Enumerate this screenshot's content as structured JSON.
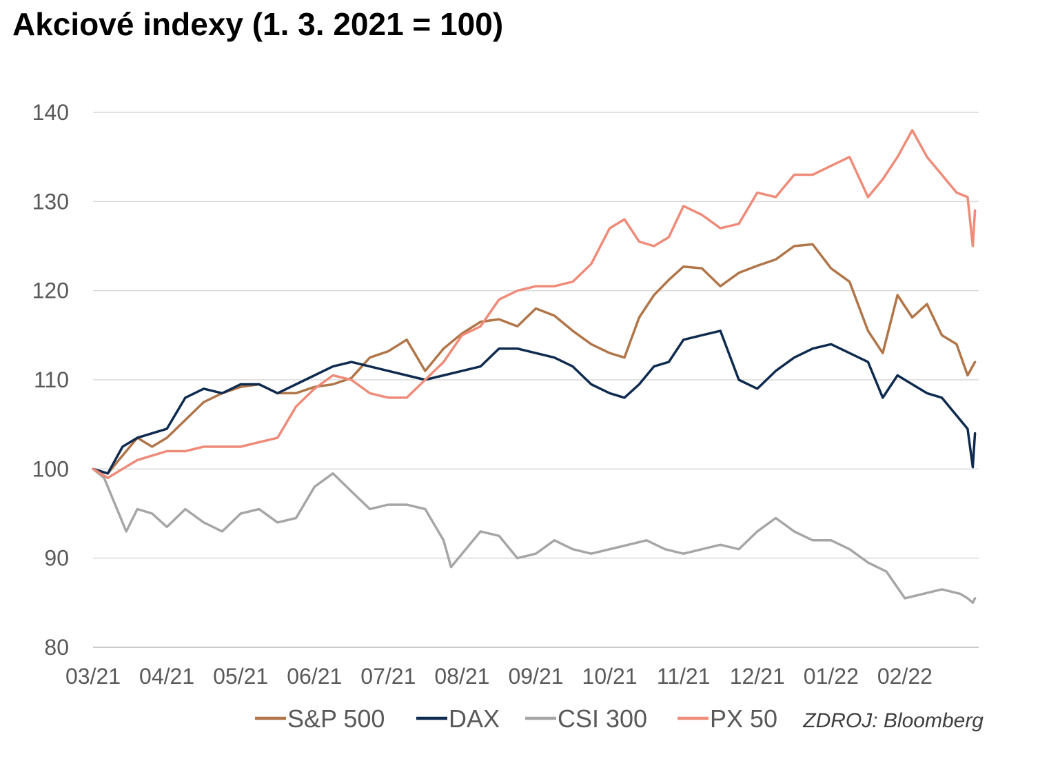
{
  "chart_data": {
    "type": "line",
    "title": "Akciové indexy (1. 3. 2021 = 100)",
    "xlabel": "",
    "ylabel": "",
    "ylim": [
      80,
      140
    ],
    "yticks": [
      80,
      90,
      100,
      110,
      120,
      130,
      140
    ],
    "ytick_labels": [
      "80",
      "90",
      "100",
      "110",
      "120",
      "130",
      "140"
    ],
    "x_tick_labels": [
      "03/21",
      "04/21",
      "05/21",
      "06/21",
      "07/21",
      "08/21",
      "09/21",
      "10/21",
      "11/21",
      "12/21",
      "01/22",
      "02/22"
    ],
    "x_unit": "months since 2021-03-01",
    "xlim": [
      0,
      12
    ],
    "grid": "horizontal",
    "legend_position": "bottom-right",
    "source": "ZDROJ: Bloomberg",
    "series": [
      {
        "name": "S&P 500",
        "color": "#B07548",
        "x": [
          0.0,
          0.2,
          0.4,
          0.6,
          0.8,
          1.0,
          1.25,
          1.5,
          1.75,
          2.0,
          2.25,
          2.5,
          2.75,
          3.0,
          3.25,
          3.5,
          3.75,
          4.0,
          4.25,
          4.5,
          4.75,
          5.0,
          5.25,
          5.5,
          5.75,
          6.0,
          6.25,
          6.5,
          6.75,
          7.0,
          7.2,
          7.4,
          7.6,
          7.8,
          8.0,
          8.25,
          8.5,
          8.75,
          9.0,
          9.25,
          9.5,
          9.75,
          10.0,
          10.25,
          10.5,
          10.7,
          10.9,
          11.1,
          11.3,
          11.5,
          11.7,
          11.85,
          11.95
        ],
        "values": [
          100,
          99.5,
          101.5,
          103.5,
          102.5,
          103.5,
          105.5,
          107.5,
          108.5,
          109.2,
          109.5,
          108.5,
          108.5,
          109.2,
          109.5,
          110.2,
          112.5,
          113.2,
          114.5,
          111.0,
          113.5,
          115.2,
          116.5,
          116.8,
          116.0,
          118.0,
          117.2,
          115.5,
          114.0,
          113.0,
          112.5,
          117.0,
          119.5,
          121.2,
          122.7,
          122.5,
          120.5,
          122.0,
          122.8,
          123.5,
          125.0,
          125.2,
          122.5,
          121.0,
          115.5,
          113.0,
          119.5,
          117.0,
          118.5,
          115.0,
          114.0,
          110.5,
          112.0
        ]
      },
      {
        "name": "DAX",
        "color": "#0E2B4F",
        "x": [
          0.0,
          0.2,
          0.4,
          0.6,
          0.8,
          1.0,
          1.25,
          1.5,
          1.75,
          2.0,
          2.25,
          2.5,
          2.75,
          3.0,
          3.25,
          3.5,
          3.75,
          4.0,
          4.25,
          4.5,
          4.75,
          5.0,
          5.25,
          5.5,
          5.75,
          6.0,
          6.25,
          6.5,
          6.75,
          7.0,
          7.2,
          7.4,
          7.6,
          7.8,
          8.0,
          8.25,
          8.5,
          8.75,
          9.0,
          9.25,
          9.5,
          9.75,
          10.0,
          10.25,
          10.5,
          10.7,
          10.9,
          11.1,
          11.3,
          11.5,
          11.7,
          11.85,
          11.92,
          11.95
        ],
        "values": [
          100,
          99.5,
          102.5,
          103.5,
          104.0,
          104.5,
          108.0,
          109.0,
          108.5,
          109.5,
          109.5,
          108.5,
          109.5,
          110.5,
          111.5,
          112.0,
          111.5,
          111.0,
          110.5,
          110.0,
          110.5,
          111.0,
          111.5,
          113.5,
          113.5,
          113.0,
          112.5,
          111.5,
          109.5,
          108.5,
          108.0,
          109.5,
          111.5,
          112.0,
          114.5,
          115.0,
          115.5,
          110.0,
          109.0,
          111.0,
          112.5,
          113.5,
          114.0,
          113.0,
          112.0,
          108.0,
          110.5,
          109.5,
          108.5,
          108.0,
          106.0,
          104.5,
          100.2,
          104.0
        ]
      },
      {
        "name": "CSI 300",
        "color": "#A6A6A6",
        "x": [
          0.0,
          0.15,
          0.3,
          0.45,
          0.6,
          0.8,
          1.0,
          1.25,
          1.5,
          1.75,
          2.0,
          2.25,
          2.5,
          2.75,
          3.0,
          3.25,
          3.5,
          3.75,
          4.0,
          4.25,
          4.5,
          4.75,
          4.85,
          5.0,
          5.25,
          5.5,
          5.75,
          6.0,
          6.25,
          6.5,
          6.75,
          7.0,
          7.25,
          7.5,
          7.75,
          8.0,
          8.25,
          8.5,
          8.75,
          9.0,
          9.25,
          9.5,
          9.75,
          10.0,
          10.25,
          10.5,
          10.75,
          11.0,
          11.25,
          11.5,
          11.75,
          11.85,
          11.92,
          11.95
        ],
        "values": [
          100,
          99.0,
          96.0,
          93.0,
          95.5,
          95.0,
          93.5,
          95.5,
          94.0,
          93.0,
          95.0,
          95.5,
          94.0,
          94.5,
          98.0,
          99.5,
          97.5,
          95.5,
          96.0,
          96.0,
          95.5,
          92.0,
          89.0,
          90.5,
          93.0,
          92.5,
          90.0,
          90.5,
          92.0,
          91.0,
          90.5,
          91.0,
          91.5,
          92.0,
          91.0,
          90.5,
          91.0,
          91.5,
          91.0,
          93.0,
          94.5,
          93.0,
          92.0,
          92.0,
          91.0,
          89.5,
          88.5,
          85.5,
          86.0,
          86.5,
          86.0,
          85.5,
          85.0,
          85.5
        ]
      },
      {
        "name": "PX 50",
        "color": "#EE8B79",
        "x": [
          0.0,
          0.2,
          0.4,
          0.6,
          0.8,
          1.0,
          1.25,
          1.5,
          1.75,
          2.0,
          2.25,
          2.5,
          2.75,
          3.0,
          3.25,
          3.5,
          3.75,
          4.0,
          4.25,
          4.5,
          4.75,
          5.0,
          5.25,
          5.5,
          5.75,
          6.0,
          6.25,
          6.5,
          6.75,
          7.0,
          7.2,
          7.4,
          7.6,
          7.8,
          8.0,
          8.25,
          8.5,
          8.75,
          9.0,
          9.25,
          9.5,
          9.75,
          10.0,
          10.25,
          10.5,
          10.7,
          10.9,
          11.1,
          11.3,
          11.5,
          11.7,
          11.85,
          11.92,
          11.95
        ],
        "values": [
          100,
          99.0,
          100.0,
          101.0,
          101.5,
          102.0,
          102.0,
          102.5,
          102.5,
          102.5,
          103.0,
          103.5,
          107.0,
          109.0,
          110.5,
          110.0,
          108.5,
          108.0,
          108.0,
          110.0,
          112.0,
          115.0,
          116.0,
          119.0,
          120.0,
          120.5,
          120.5,
          121.0,
          123.0,
          127.0,
          128.0,
          125.5,
          125.0,
          126.0,
          129.5,
          128.5,
          127.0,
          127.5,
          131.0,
          130.5,
          133.0,
          133.0,
          134.0,
          135.0,
          130.5,
          132.5,
          135.0,
          138.0,
          135.0,
          133.0,
          131.0,
          130.5,
          125.0,
          129.0
        ]
      }
    ]
  }
}
